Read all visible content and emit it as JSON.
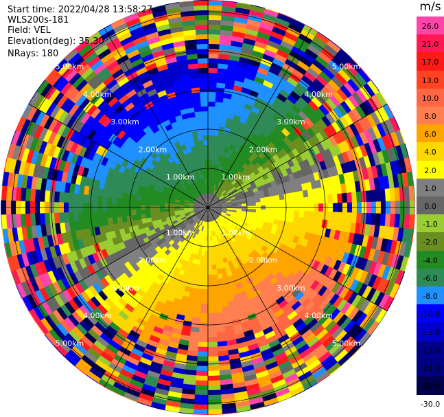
{
  "info": {
    "start_time": "Start time: 2022/04/28 13:58:27",
    "instrument": "WLS200s-181",
    "field": "Field: VEL",
    "elevation": "Elevation(deg): 35.30",
    "nrays": "NRays: 180"
  },
  "colorbar": {
    "unit": "m/s",
    "bins": [
      {
        "label": "26.0",
        "color": "#ff44aa"
      },
      {
        "label": "21.0",
        "color": "#ff1a55"
      },
      {
        "label": "17.0",
        "color": "#ff1a1a"
      },
      {
        "label": "13.0",
        "color": "#ff4422"
      },
      {
        "label": "10.0",
        "color": "#ff6644"
      },
      {
        "label": "8.0",
        "color": "#ff7f50"
      },
      {
        "label": "6.0",
        "color": "#ffa500"
      },
      {
        "label": "4.0",
        "color": "#ffd700"
      },
      {
        "label": "2.0",
        "color": "#ffff00"
      },
      {
        "label": "1.0",
        "color": "#7f7f7f"
      },
      {
        "label": "0.0",
        "color": "#666666"
      },
      {
        "label": "-1.0",
        "color": "#9acd32"
      },
      {
        "label": "-2.0",
        "color": "#6b8e23"
      },
      {
        "label": "-4.0",
        "color": "#228b22"
      },
      {
        "label": "-6.0",
        "color": "#2e8b57"
      },
      {
        "label": "-8.0",
        "color": "#1e90ff"
      },
      {
        "label": "-10.0",
        "color": "#0000ff"
      },
      {
        "label": "-13.0",
        "color": "#0000cd"
      },
      {
        "label": "-17.0",
        "color": "#00008b"
      },
      {
        "label": "-21.0",
        "color": "#000080"
      },
      {
        "label": "-26.0",
        "color": "#00004b"
      },
      {
        "label": "-30.0",
        "color": ""
      }
    ]
  },
  "rings": {
    "labels": [
      "1.00km",
      "2.00km",
      "3.00km",
      "4.00km",
      "5.00km"
    ]
  }
}
